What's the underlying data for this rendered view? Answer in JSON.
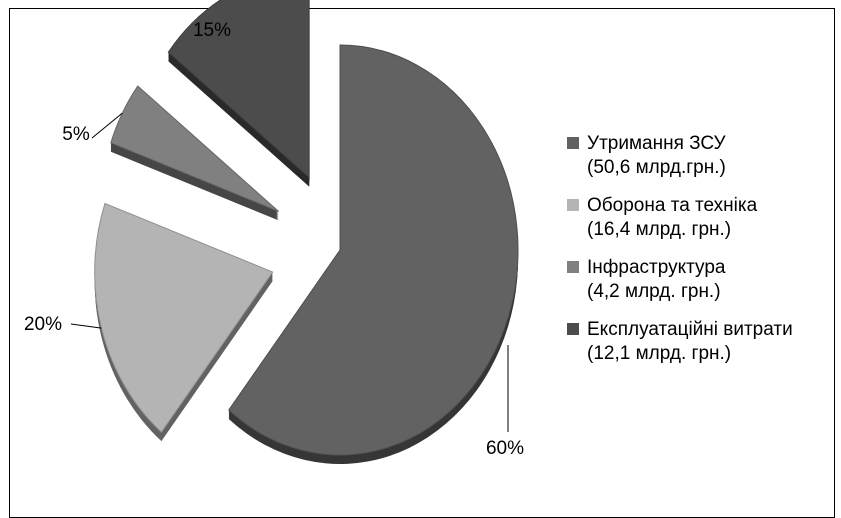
{
  "chart_data": {
    "type": "pie",
    "style": "3d-exploded",
    "legend_position": "right",
    "slices": [
      {
        "label_line1": "Утримання ЗСУ",
        "label_line2": "(50,6 млрд.грн.)",
        "value": 50.6,
        "percent_label": "60%",
        "color": "#626262",
        "exploded": false
      },
      {
        "label_line1": "Оборона та техніка",
        "label_line2": "(16,4 млрд. грн.)",
        "value": 16.4,
        "percent_label": "20%",
        "color": "#b4b4b4",
        "exploded": true
      },
      {
        "label_line1": "Інфраструктура",
        "label_line2": "(4,2 млрд. грн.)",
        "value": 4.2,
        "percent_label": "5%",
        "color": "#808080",
        "exploded": true
      },
      {
        "label_line1": "Експлуатаційні витрати",
        "label_line2": "(12,1 млрд. грн.)",
        "value": 12.1,
        "percent_label": "15%",
        "color": "#4c4c4c",
        "exploded": true
      }
    ]
  }
}
